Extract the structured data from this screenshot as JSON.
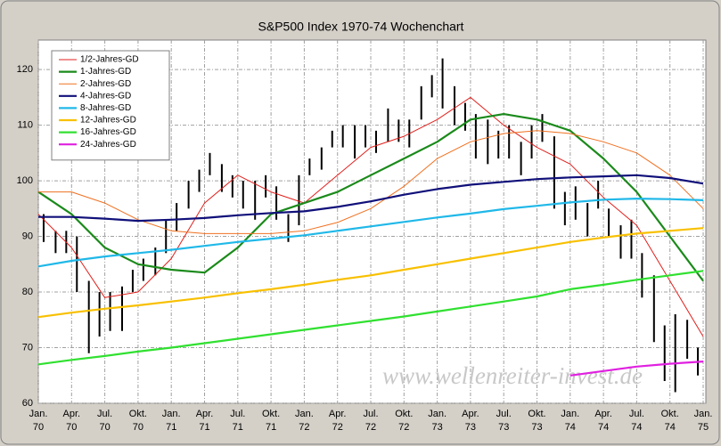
{
  "chart_data": {
    "type": "line",
    "title": "S&P500 Index 1970-74 Wochenchart",
    "annotation": "www.wellenreiter-invest.de",
    "xlim": [
      1970,
      1975.02
    ],
    "ylim": [
      60,
      125.3
    ],
    "yticks": [
      60,
      70,
      80,
      90,
      100,
      110,
      120
    ],
    "xticks": [
      {
        "value": 1970,
        "label": "Jan.\n70"
      },
      {
        "value": 1970.25,
        "label": "Apr.\n70"
      },
      {
        "value": 1970.5,
        "label": "Jul.\n70"
      },
      {
        "value": 1970.75,
        "label": "Okt.\n70"
      },
      {
        "value": 1971,
        "label": "Jan.\n71"
      },
      {
        "value": 1971.25,
        "label": "Apr.\n71"
      },
      {
        "value": 1971.5,
        "label": "Jul.\n71"
      },
      {
        "value": 1971.75,
        "label": "Okt.\n71"
      },
      {
        "value": 1972,
        "label": "Jan.\n72"
      },
      {
        "value": 1972.25,
        "label": "Apr.\n72"
      },
      {
        "value": 1972.5,
        "label": "Jul.\n72"
      },
      {
        "value": 1972.75,
        "label": "Okt.\n72"
      },
      {
        "value": 1973,
        "label": "Jan.\n73"
      },
      {
        "value": 1973.25,
        "label": "Apr.\n73"
      },
      {
        "value": 1973.5,
        "label": "Jul.\n73"
      },
      {
        "value": 1973.75,
        "label": "Okt.\n73"
      },
      {
        "value": 1974,
        "label": "Jan.\n74"
      },
      {
        "value": 1974.25,
        "label": "Apr.\n74"
      },
      {
        "value": 1974.5,
        "label": "Jul.\n74"
      },
      {
        "value": 1974.75,
        "label": "Okt.\n74"
      },
      {
        "value": 1975,
        "label": "Jan.\n75"
      }
    ],
    "grid": true,
    "legend": "upper left",
    "price_bars": {
      "type": "hl",
      "color": "#000000",
      "x": [
        1970.04,
        1970.13,
        1970.21,
        1970.29,
        1970.38,
        1970.46,
        1970.54,
        1970.63,
        1970.71,
        1970.79,
        1970.88,
        1970.96,
        1971.04,
        1971.13,
        1971.21,
        1971.29,
        1971.38,
        1971.46,
        1971.54,
        1971.63,
        1971.71,
        1971.79,
        1971.88,
        1971.96,
        1972.04,
        1972.13,
        1972.21,
        1972.29,
        1972.38,
        1972.46,
        1972.54,
        1972.63,
        1972.71,
        1972.79,
        1972.88,
        1972.96,
        1973.04,
        1973.13,
        1973.21,
        1973.29,
        1973.38,
        1973.46,
        1973.54,
        1973.63,
        1973.71,
        1973.79,
        1973.88,
        1973.96,
        1974.04,
        1974.13,
        1974.21,
        1974.29,
        1974.38,
        1974.46,
        1974.54,
        1974.63,
        1974.71,
        1974.79,
        1974.88,
        1974.96
      ],
      "high": [
        94,
        91,
        91,
        90,
        82,
        80,
        80,
        81,
        84,
        86,
        88,
        93,
        96,
        100,
        102,
        105,
        103,
        101,
        100,
        100,
        101,
        99,
        94,
        101,
        104,
        106,
        109,
        110,
        110,
        110,
        109,
        113,
        111,
        111,
        117,
        119,
        122,
        117,
        114,
        112,
        111,
        109,
        110,
        107,
        110,
        112,
        108,
        98,
        99,
        96,
        100,
        95,
        92,
        93,
        87,
        83,
        74,
        76,
        75,
        70
      ],
      "low": [
        89,
        87,
        87,
        80,
        69,
        72,
        73,
        73,
        80,
        82,
        83,
        87,
        91,
        95,
        98,
        101,
        98,
        97,
        95,
        93,
        97,
        93,
        89,
        92,
        101,
        102,
        106,
        106,
        104,
        106,
        105,
        107,
        107,
        106,
        111,
        115,
        113,
        110,
        109,
        104,
        103,
        104,
        104,
        101,
        104,
        107,
        95,
        92,
        93,
        90,
        95,
        90,
        86,
        86,
        79,
        71,
        64,
        62,
        68,
        65
      ]
    },
    "x": [
      1970,
      1970.25,
      1970.5,
      1970.75,
      1971,
      1971.25,
      1971.5,
      1971.75,
      1972,
      1972.25,
      1972.5,
      1972.75,
      1973,
      1973.25,
      1973.5,
      1973.75,
      1974,
      1974.25,
      1974.5,
      1974.75,
      1975
    ],
    "series": [
      {
        "name": "1/2-Jahres-GD",
        "color": "#e0201c",
        "width": 1,
        "values": [
          94,
          88,
          79,
          80,
          86,
          96,
          101,
          98,
          96,
          101,
          106,
          108,
          111,
          115,
          110,
          106,
          103,
          97,
          92,
          82,
          72
        ]
      },
      {
        "name": "1-Jahres-GD",
        "color": "#1a8a1a",
        "width": 2.2,
        "values": [
          98,
          94,
          88,
          85,
          84,
          83.5,
          88,
          94,
          96,
          98,
          101,
          104,
          107,
          111,
          112,
          111,
          109,
          104,
          98,
          90,
          82
        ]
      },
      {
        "name": "2-Jahres-GD",
        "color": "#f07020",
        "width": 1,
        "values": [
          98,
          98,
          96,
          93,
          91,
          90.5,
          90.5,
          90.5,
          91,
          92.5,
          95,
          99,
          104,
          107,
          108.5,
          109,
          108.5,
          107,
          105,
          101,
          95
        ]
      },
      {
        "name": "4-Jahres-GD",
        "color": "#10107a",
        "width": 2.2,
        "values": [
          93.5,
          93.5,
          93.2,
          92.8,
          93,
          93.3,
          93.8,
          94.2,
          94.5,
          95.3,
          96.3,
          97.5,
          98.5,
          99.3,
          99.8,
          100.3,
          100.6,
          100.8,
          101,
          100.5,
          99.5
        ]
      },
      {
        "name": "8-Jahres-GD",
        "color": "#20b8e8",
        "width": 2.2,
        "values": [
          84.6,
          85.6,
          86.4,
          87,
          87.6,
          88.3,
          89,
          89.6,
          90.2,
          91,
          91.8,
          92.6,
          93.4,
          94.1,
          94.9,
          95.5,
          96.1,
          96.6,
          96.8,
          96.7,
          96.5
        ]
      },
      {
        "name": "12-Jahres-GD",
        "color": "#f8c000",
        "width": 2.2,
        "values": [
          75.5,
          76.3,
          77,
          77.6,
          78.3,
          79,
          79.8,
          80.5,
          81.3,
          82.2,
          83,
          84,
          85,
          86,
          87,
          88,
          89,
          89.8,
          90.5,
          91,
          91.5
        ]
      },
      {
        "name": "16-Jahres-GD",
        "color": "#30e030",
        "width": 2.2,
        "values": [
          67,
          67.8,
          68.5,
          69.3,
          70,
          70.8,
          71.6,
          72.4,
          73.2,
          74,
          74.8,
          75.6,
          76.5,
          77.4,
          78.3,
          79.2,
          80.5,
          81.3,
          82.2,
          83,
          83.8
        ]
      },
      {
        "name": "24-Jahres-GD",
        "color": "#e020e0",
        "width": 2.2,
        "values": [
          null,
          null,
          null,
          null,
          null,
          null,
          null,
          null,
          null,
          null,
          null,
          null,
          null,
          null,
          null,
          null,
          65,
          65.8,
          66.6,
          67.1,
          67.5
        ]
      }
    ]
  }
}
